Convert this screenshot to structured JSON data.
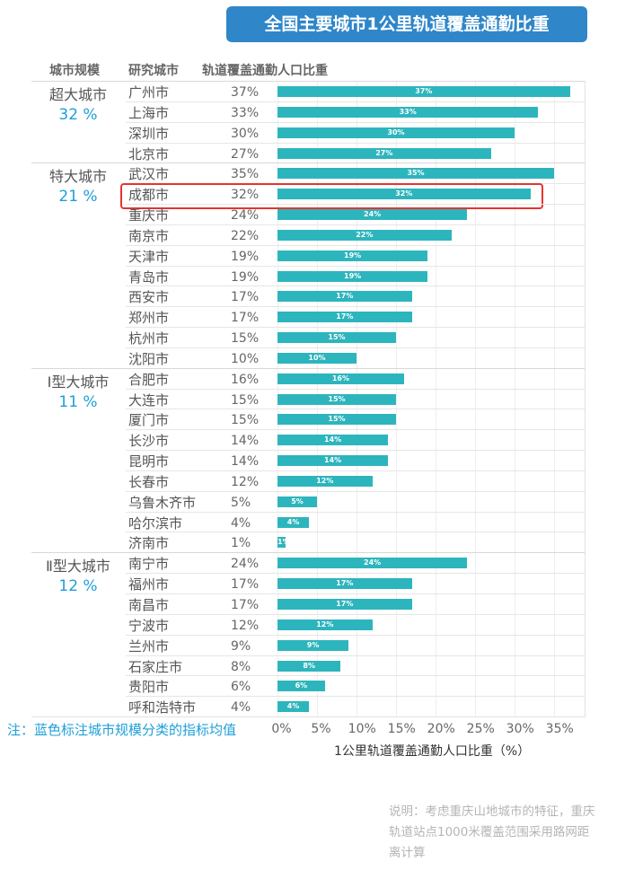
{
  "title": "全国主要城市1公里轨道覆盖通勤比重",
  "headers": {
    "scale": "城市规模",
    "city": "研究城市",
    "ratio": "轨道覆盖通勤人口比重"
  },
  "note": "注：蓝色标注城市规模分类的指标均值",
  "explanation": "说明：考虑重庆山地城市的特征，重庆轨道站点1000米覆盖范围采用路网距离计算",
  "highlight_city": "成都市",
  "colors": {
    "bar": "#2db5bd",
    "title_bg": "#2f86c9",
    "mean": "#1e9fd8",
    "highlight": "#e5352e"
  },
  "chart_data": {
    "type": "bar",
    "orientation": "horizontal",
    "title": "全国主要城市1公里轨道覆盖通勤比重",
    "xlabel": "1公里轨道覆盖通勤人口比重（%）",
    "xlim": [
      0,
      37
    ],
    "xticks": [
      "0%",
      "5%",
      "10%",
      "15%",
      "20%",
      "25%",
      "30%",
      "35%"
    ],
    "grid": true,
    "groups": [
      {
        "name": "超大城市",
        "mean": "32 %",
        "cities": [
          {
            "city": "广州市",
            "value": 37,
            "label": "37%"
          },
          {
            "city": "上海市",
            "value": 33,
            "label": "33%"
          },
          {
            "city": "深圳市",
            "value": 30,
            "label": "30%"
          },
          {
            "city": "北京市",
            "value": 27,
            "label": "27%"
          }
        ]
      },
      {
        "name": "特大城市",
        "mean": "21 %",
        "cities": [
          {
            "city": "武汉市",
            "value": 35,
            "label": "35%"
          },
          {
            "city": "成都市",
            "value": 32,
            "label": "32%"
          },
          {
            "city": "重庆市",
            "value": 24,
            "label": "24%"
          },
          {
            "city": "南京市",
            "value": 22,
            "label": "22%"
          },
          {
            "city": "天津市",
            "value": 19,
            "label": "19%"
          },
          {
            "city": "青岛市",
            "value": 19,
            "label": "19%"
          },
          {
            "city": "西安市",
            "value": 17,
            "label": "17%"
          },
          {
            "city": "郑州市",
            "value": 17,
            "label": "17%"
          },
          {
            "city": "杭州市",
            "value": 15,
            "label": "15%"
          },
          {
            "city": "沈阳市",
            "value": 10,
            "label": "10%"
          }
        ]
      },
      {
        "name": "Ⅰ型大城市",
        "mean": "11 %",
        "cities": [
          {
            "city": "合肥市",
            "value": 16,
            "label": "16%"
          },
          {
            "city": "大连市",
            "value": 15,
            "label": "15%"
          },
          {
            "city": "厦门市",
            "value": 15,
            "label": "15%"
          },
          {
            "city": "长沙市",
            "value": 14,
            "label": "14%"
          },
          {
            "city": "昆明市",
            "value": 14,
            "label": "14%"
          },
          {
            "city": "长春市",
            "value": 12,
            "label": "12%"
          },
          {
            "city": "乌鲁木齐市",
            "value": 5,
            "label": "5%"
          },
          {
            "city": "哈尔滨市",
            "value": 4,
            "label": "4%"
          },
          {
            "city": "济南市",
            "value": 1,
            "label": "1%"
          }
        ]
      },
      {
        "name": "Ⅱ型大城市",
        "mean": "12 %",
        "cities": [
          {
            "city": "南宁市",
            "value": 24,
            "label": "24%"
          },
          {
            "city": "福州市",
            "value": 17,
            "label": "17%"
          },
          {
            "city": "南昌市",
            "value": 17,
            "label": "17%"
          },
          {
            "city": "宁波市",
            "value": 12,
            "label": "12%"
          },
          {
            "city": "兰州市",
            "value": 9,
            "label": "9%"
          },
          {
            "city": "石家庄市",
            "value": 8,
            "label": "8%"
          },
          {
            "city": "贵阳市",
            "value": 6,
            "label": "6%"
          },
          {
            "city": "呼和浩特市",
            "value": 4,
            "label": "4%"
          }
        ]
      }
    ]
  }
}
